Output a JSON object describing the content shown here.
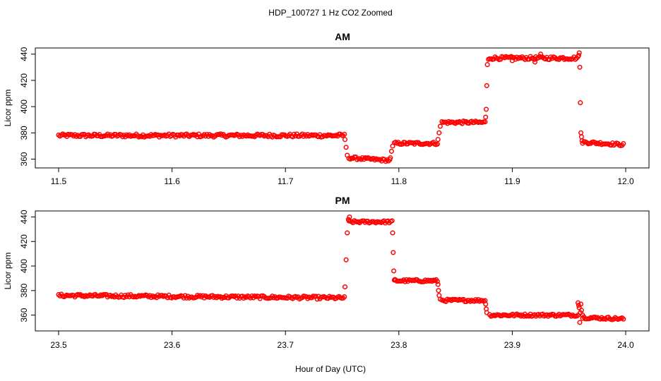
{
  "figure": {
    "title": "HDP_100727  1 Hz CO2 Zoomed",
    "xlabel": "Hour of Day (UTC)"
  },
  "chart_data": [
    {
      "type": "scatter",
      "title": "AM",
      "xlabel": "",
      "ylabel": "Licor ppm",
      "xlim": [
        11.5,
        12.0
      ],
      "ylim": [
        356,
        442
      ],
      "xticks": [
        11.5,
        11.6,
        11.7,
        11.8,
        11.9,
        12.0
      ],
      "xtick_labels": [
        "11.5",
        "11.6",
        "11.7",
        "11.8",
        "11.9",
        "12.0"
      ],
      "yticks": [
        360,
        380,
        400,
        420,
        440
      ],
      "ytick_labels": [
        "360",
        "380",
        "400",
        "420",
        "440"
      ],
      "grid": false,
      "color": "#ff0000",
      "segments": [
        {
          "x": [
            11.5,
            11.752
          ],
          "y": [
            378,
            378
          ],
          "jitter": 1.2
        },
        {
          "x": [
            11.756,
            11.792
          ],
          "y": [
            361,
            359
          ],
          "jitter": 1.0
        },
        {
          "x": [
            11.796,
            11.834
          ],
          "y": [
            372,
            372
          ],
          "jitter": 1.0
        },
        {
          "x": [
            11.838,
            11.876
          ],
          "y": [
            388,
            388
          ],
          "jitter": 1.0
        },
        {
          "x": [
            11.88,
            11.958
          ],
          "y": [
            437,
            437
          ],
          "jitter": 1.2
        },
        {
          "x": [
            11.962,
            11.998
          ],
          "y": [
            373,
            371
          ],
          "jitter": 1.0
        }
      ],
      "points": [
        {
          "x": 11.7525,
          "y": 375
        },
        {
          "x": 11.7535,
          "y": 369
        },
        {
          "x": 11.7545,
          "y": 363
        },
        {
          "x": 11.7925,
          "y": 361
        },
        {
          "x": 11.7935,
          "y": 366
        },
        {
          "x": 11.7945,
          "y": 370
        },
        {
          "x": 11.8345,
          "y": 375
        },
        {
          "x": 11.8355,
          "y": 380
        },
        {
          "x": 11.8365,
          "y": 385
        },
        {
          "x": 11.8765,
          "y": 392
        },
        {
          "x": 11.877,
          "y": 398
        },
        {
          "x": 11.8775,
          "y": 416
        },
        {
          "x": 11.878,
          "y": 432
        },
        {
          "x": 11.879,
          "y": 436
        },
        {
          "x": 11.925,
          "y": 440
        },
        {
          "x": 11.9,
          "y": 435
        },
        {
          "x": 11.92,
          "y": 434
        },
        {
          "x": 11.9585,
          "y": 439
        },
        {
          "x": 11.959,
          "y": 441
        },
        {
          "x": 11.9595,
          "y": 430
        },
        {
          "x": 11.96,
          "y": 403
        },
        {
          "x": 11.9605,
          "y": 380
        },
        {
          "x": 11.961,
          "y": 377
        },
        {
          "x": 11.9615,
          "y": 374
        }
      ]
    },
    {
      "type": "scatter",
      "title": "PM",
      "xlabel": "",
      "ylabel": "Licor ppm",
      "xlim": [
        23.5,
        24.0
      ],
      "ylim": [
        350,
        442
      ],
      "xticks": [
        23.5,
        23.6,
        23.7,
        23.8,
        23.9,
        24.0
      ],
      "xtick_labels": [
        "23.5",
        "23.6",
        "23.7",
        "23.8",
        "23.9",
        "24.0"
      ],
      "yticks": [
        360,
        380,
        400,
        420,
        440
      ],
      "ytick_labels": [
        "360",
        "380",
        "400",
        "420",
        "440"
      ],
      "grid": false,
      "color": "#ff0000",
      "segments": [
        {
          "x": [
            23.5,
            23.752
          ],
          "y": [
            376,
            374
          ],
          "jitter": 1.2
        },
        {
          "x": [
            23.756,
            23.794
          ],
          "y": [
            436,
            436
          ],
          "jitter": 1.0
        },
        {
          "x": [
            23.796,
            23.834
          ],
          "y": [
            388,
            388
          ],
          "jitter": 1.0
        },
        {
          "x": [
            23.838,
            23.876
          ],
          "y": [
            372,
            372
          ],
          "jitter": 1.0
        },
        {
          "x": [
            23.88,
            23.958
          ],
          "y": [
            360,
            360
          ],
          "jitter": 1.0
        },
        {
          "x": [
            23.962,
            23.998
          ],
          "y": [
            358,
            357
          ],
          "jitter": 1.0
        }
      ],
      "points": [
        {
          "x": 23.7525,
          "y": 383
        },
        {
          "x": 23.7535,
          "y": 405
        },
        {
          "x": 23.7545,
          "y": 427
        },
        {
          "x": 23.7555,
          "y": 438
        },
        {
          "x": 23.7565,
          "y": 440
        },
        {
          "x": 23.7945,
          "y": 427
        },
        {
          "x": 23.795,
          "y": 411
        },
        {
          "x": 23.7955,
          "y": 396
        },
        {
          "x": 23.7965,
          "y": 389
        },
        {
          "x": 23.8345,
          "y": 385
        },
        {
          "x": 23.835,
          "y": 380
        },
        {
          "x": 23.8355,
          "y": 376
        },
        {
          "x": 23.8365,
          "y": 373
        },
        {
          "x": 23.8765,
          "y": 369
        },
        {
          "x": 23.877,
          "y": 365
        },
        {
          "x": 23.8775,
          "y": 362
        },
        {
          "x": 23.958,
          "y": 370
        },
        {
          "x": 23.9585,
          "y": 368
        },
        {
          "x": 23.959,
          "y": 366
        },
        {
          "x": 23.9595,
          "y": 354
        },
        {
          "x": 23.96,
          "y": 362
        },
        {
          "x": 23.9605,
          "y": 369
        },
        {
          "x": 23.961,
          "y": 364
        },
        {
          "x": 23.962,
          "y": 360
        }
      ]
    }
  ]
}
